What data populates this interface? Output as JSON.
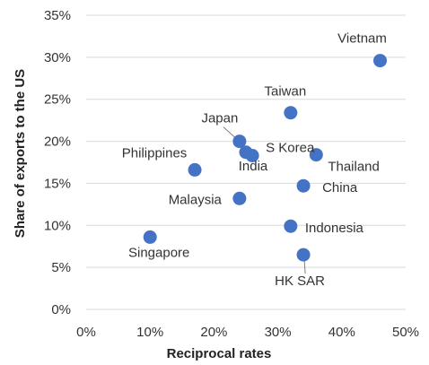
{
  "chart_data": {
    "type": "scatter",
    "xlabel": "Reciprocal rates",
    "ylabel": "Share of exports to the US",
    "xlim": [
      0,
      50
    ],
    "ylim": [
      0,
      35
    ],
    "x_ticks": [
      0,
      10,
      20,
      30,
      40,
      50
    ],
    "y_ticks": [
      0,
      5,
      10,
      15,
      20,
      25,
      30,
      35
    ],
    "x_tick_labels": [
      "0%",
      "10%",
      "20%",
      "30%",
      "40%",
      "50%"
    ],
    "y_tick_labels": [
      "0%",
      "5%",
      "10%",
      "15%",
      "20%",
      "25%",
      "30%",
      "35%"
    ],
    "grid": "horizontal",
    "legend": "none",
    "marker_color": "#4472C4",
    "points": [
      {
        "label": "Vietnam",
        "x": 46,
        "y": 29.6
      },
      {
        "label": "Taiwan",
        "x": 32,
        "y": 23.4
      },
      {
        "label": "Japan",
        "x": 24,
        "y": 20.0
      },
      {
        "label": "S Korea",
        "x": 26,
        "y": 18.3
      },
      {
        "label": "India",
        "x": 25,
        "y": 18.7
      },
      {
        "label": "Thailand",
        "x": 36,
        "y": 18.4
      },
      {
        "label": "Philippines",
        "x": 17,
        "y": 16.6
      },
      {
        "label": "China",
        "x": 34,
        "y": 14.7
      },
      {
        "label": "Malaysia",
        "x": 24,
        "y": 13.2
      },
      {
        "label": "Indonesia",
        "x": 32,
        "y": 9.9
      },
      {
        "label": "Singapore",
        "x": 10,
        "y": 8.6
      },
      {
        "label": "HK SAR",
        "x": 34,
        "y": 6.5
      }
    ]
  }
}
